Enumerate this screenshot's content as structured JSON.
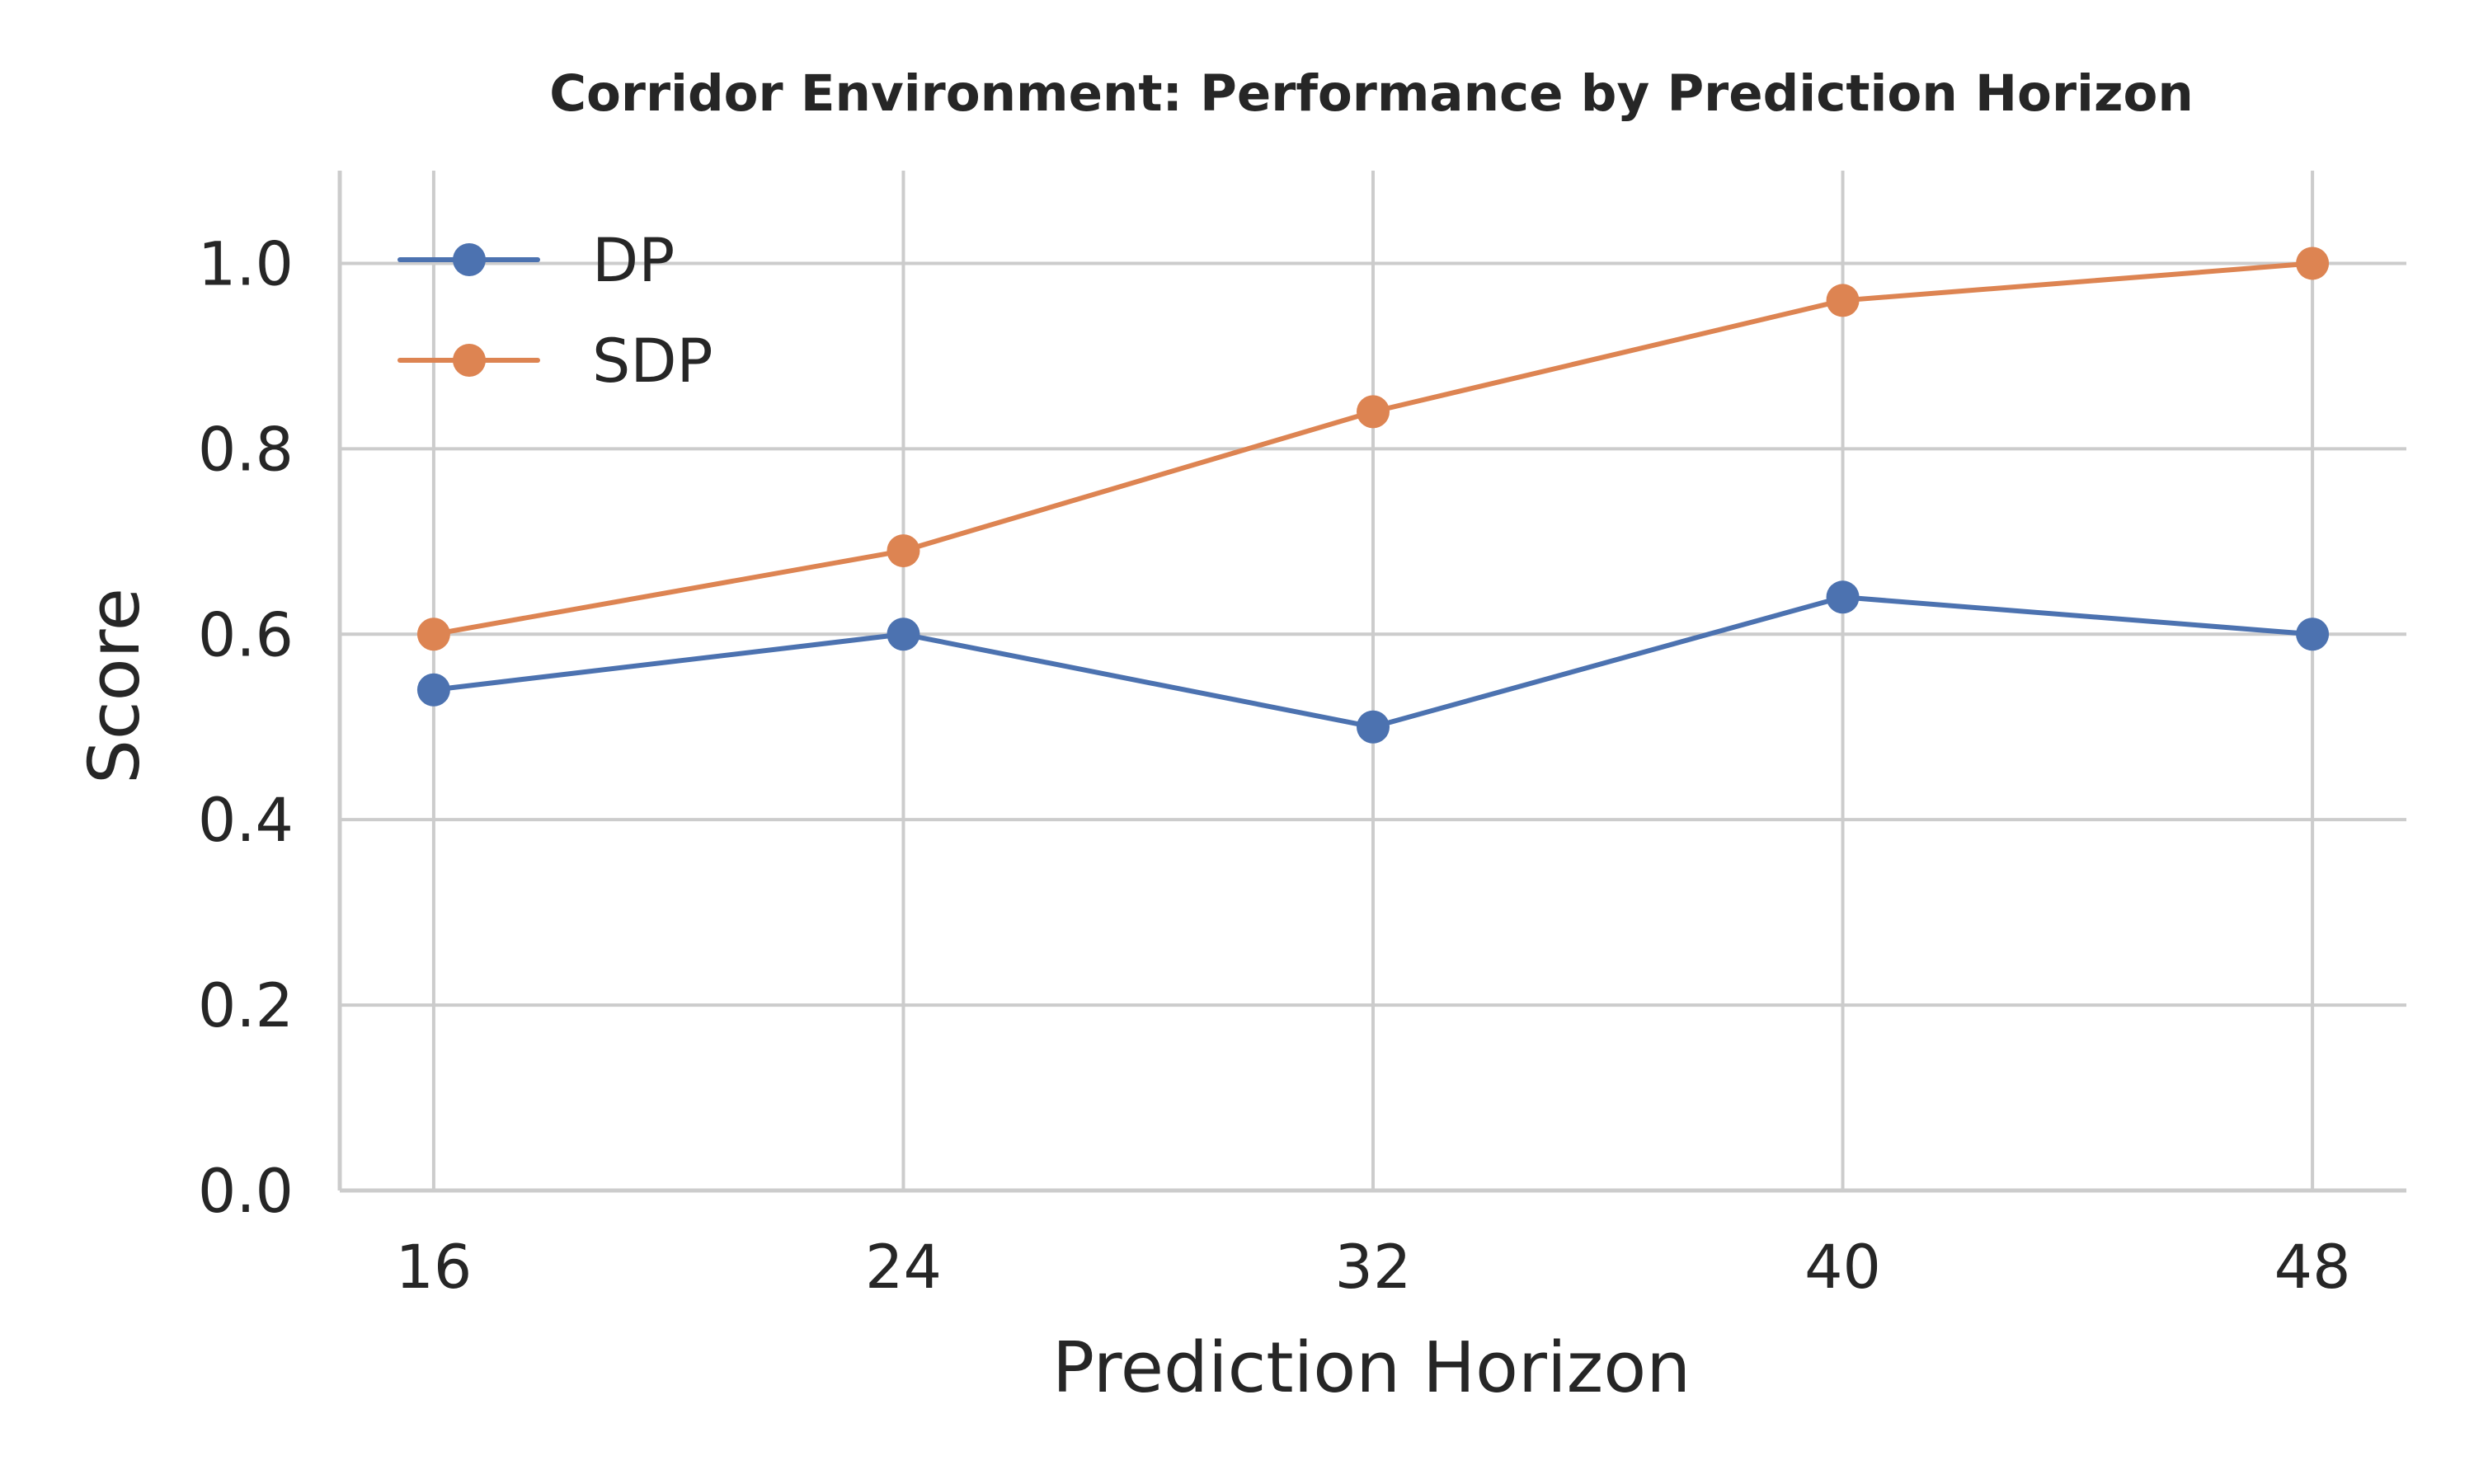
{
  "chart_data": {
    "type": "line",
    "title": "Corridor Environment: Performance by Prediction Horizon",
    "xlabel": "Prediction Horizon",
    "ylabel": "Score",
    "x": [
      16,
      24,
      32,
      40,
      48
    ],
    "x_tick_labels": [
      "16",
      "24",
      "32",
      "40",
      "48"
    ],
    "y_ticks": [
      0.0,
      0.2,
      0.4,
      0.6,
      0.8,
      1.0
    ],
    "y_tick_labels": [
      "0.0",
      "0.2",
      "0.4",
      "0.6",
      "0.8",
      "1.0"
    ],
    "ylim": [
      0.0,
      1.1
    ],
    "xlim": [
      14.4,
      49.6
    ],
    "grid": true,
    "legend_position": "top-left",
    "series": [
      {
        "name": "DP",
        "color": "#4c72b0",
        "values": [
          0.54,
          0.6,
          0.5,
          0.64,
          0.6
        ]
      },
      {
        "name": "SDP",
        "color": "#dd8452",
        "values": [
          0.6,
          0.69,
          0.84,
          0.96,
          1.0
        ]
      }
    ]
  }
}
